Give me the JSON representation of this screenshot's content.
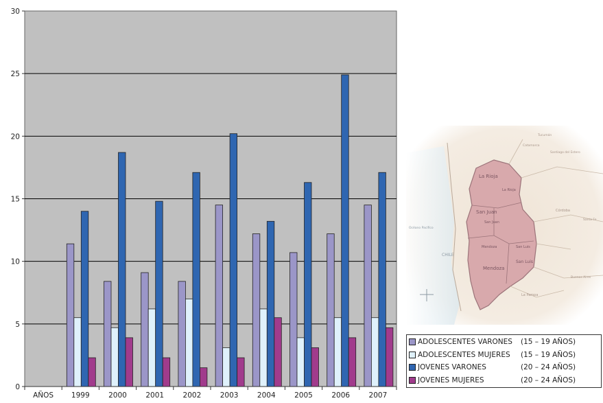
{
  "chart_data": {
    "type": "bar",
    "categories": [
      "1999",
      "2000",
      "2001",
      "2002",
      "2003",
      "2004",
      "2005",
      "2006",
      "2007"
    ],
    "xaxis_first_label": "AÑOS",
    "ylim": [
      0,
      30
    ],
    "yticks": [
      0,
      5,
      10,
      15,
      20,
      25,
      30
    ],
    "grid": true,
    "legend_position": "bottom-right",
    "series": [
      {
        "name": "ADOLESCENTES VARONES",
        "range": "(15 – 19 AÑOS)",
        "color": "#9b96c8",
        "values": [
          11.4,
          8.4,
          9.1,
          8.4,
          14.5,
          12.2,
          10.7,
          12.2,
          14.5
        ]
      },
      {
        "name": "ADOLESCENTES MUJERES",
        "range": "(15 – 19 AÑOS)",
        "color": "#dff1fb",
        "values": [
          5.5,
          4.7,
          6.2,
          7.0,
          3.1,
          6.2,
          3.9,
          5.5,
          5.5
        ]
      },
      {
        "name": "JOVENES VARONES",
        "range": "(20 – 24 AÑOS)",
        "color": "#2f66b1",
        "values": [
          14.0,
          18.7,
          14.8,
          17.1,
          20.2,
          13.2,
          16.3,
          24.9,
          17.1
        ]
      },
      {
        "name": "JOVENES MUJERES",
        "range": "(20 – 24 AÑOS)",
        "color": "#a13b8c",
        "values": [
          2.3,
          3.9,
          2.3,
          1.5,
          2.3,
          5.5,
          3.1,
          3.9,
          4.7
        ]
      }
    ],
    "plot_background": "#c0c0c0"
  },
  "map": {
    "labels": [
      "La Rioja",
      "La Rioja",
      "San Juan",
      "San Juan",
      "Mendoza",
      "Mendoza",
      "San Luis",
      "San Luis",
      "CHILE",
      "Océano Pacífico",
      "Córdoba",
      "Santiago del Estero",
      "Catamarca",
      "La Pampa",
      "Buenos Aires",
      "Tucumán",
      "Santa Fe"
    ]
  }
}
